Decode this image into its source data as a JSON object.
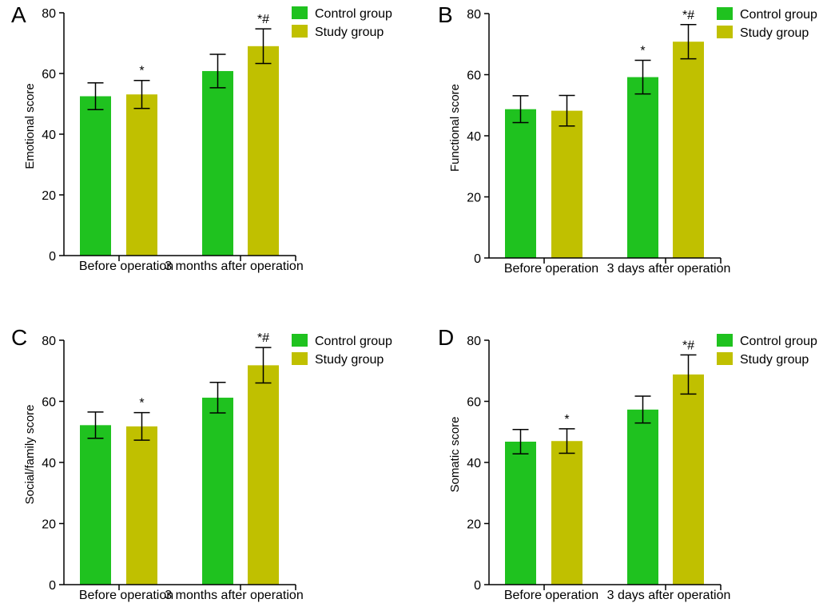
{
  "colors": {
    "control": "#1fc21f",
    "study": "#c0c000",
    "axis": "#000000"
  },
  "chart_data": [
    {
      "panel": "A",
      "type": "bar",
      "ylabel": "Emotional score",
      "xlabel": "",
      "ylim": [
        0,
        80
      ],
      "yticks": [
        0,
        20,
        40,
        60,
        80
      ],
      "categories": [
        "Before operation",
        "3 months after operation"
      ],
      "legend": [
        "Control group",
        "Study group"
      ],
      "series": [
        {
          "name": "Control group",
          "values": [
            52.5,
            60.8
          ],
          "errors": [
            4.4,
            5.5
          ],
          "marks": [
            "",
            ""
          ]
        },
        {
          "name": "Study group",
          "values": [
            53.1,
            69.0
          ],
          "errors": [
            4.6,
            5.7
          ],
          "marks": [
            "*",
            "*#"
          ]
        }
      ]
    },
    {
      "panel": "B",
      "type": "bar",
      "ylabel": "Functional score",
      "xlabel": "",
      "ylim": [
        0,
        80
      ],
      "yticks": [
        0,
        20,
        40,
        60,
        80
      ],
      "categories": [
        "Before operation",
        "3 days after operation"
      ],
      "legend": [
        "Control group",
        "Study group"
      ],
      "series": [
        {
          "name": "Control group",
          "values": [
            48.7,
            59.2
          ],
          "errors": [
            4.4,
            5.5
          ],
          "marks": [
            "",
            "*"
          ]
        },
        {
          "name": "Study group",
          "values": [
            48.2,
            70.8
          ],
          "errors": [
            5.0,
            5.6
          ],
          "marks": [
            "",
            "*#"
          ]
        }
      ]
    },
    {
      "panel": "C",
      "type": "bar",
      "ylabel": "Social/family score",
      "xlabel": "",
      "ylim": [
        0,
        80
      ],
      "yticks": [
        0,
        20,
        40,
        60,
        80
      ],
      "categories": [
        "Before operation",
        "3 months after operation"
      ],
      "legend": [
        "Control group",
        "Study group"
      ],
      "series": [
        {
          "name": "Control group",
          "values": [
            52.2,
            61.2
          ],
          "errors": [
            4.3,
            5.0
          ],
          "marks": [
            "",
            ""
          ]
        },
        {
          "name": "Study group",
          "values": [
            51.8,
            71.8
          ],
          "errors": [
            4.5,
            5.8
          ],
          "marks": [
            "*",
            "*#"
          ]
        }
      ]
    },
    {
      "panel": "D",
      "type": "bar",
      "ylabel": "Somatic score",
      "xlabel": "",
      "ylim": [
        0,
        80
      ],
      "yticks": [
        0,
        20,
        40,
        60,
        80
      ],
      "categories": [
        "Before operation",
        "3 days after operation"
      ],
      "legend": [
        "Control group",
        "Study group"
      ],
      "series": [
        {
          "name": "Control group",
          "values": [
            46.8,
            57.3
          ],
          "errors": [
            4.0,
            4.4
          ],
          "marks": [
            "",
            ""
          ]
        },
        {
          "name": "Study group",
          "values": [
            47.0,
            68.8
          ],
          "errors": [
            4.0,
            6.4
          ],
          "marks": [
            "*",
            "*#"
          ]
        }
      ]
    }
  ]
}
